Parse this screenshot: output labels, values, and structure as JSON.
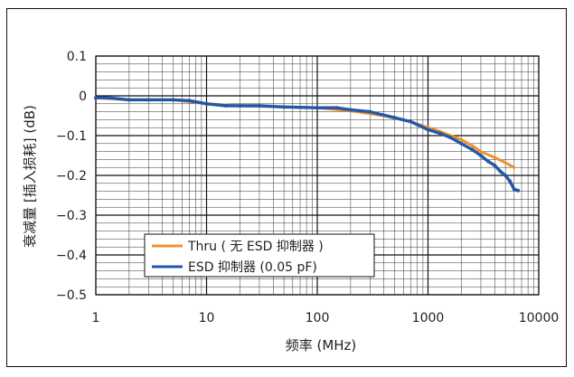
{
  "chart_data": {
    "type": "line",
    "title": "",
    "xlabel": "频率 (MHz)",
    "ylabel": "衰减量 [插入损耗] (dB)",
    "xscale": "log",
    "xlim": [
      1,
      10000
    ],
    "ylim": [
      -0.5,
      0.1
    ],
    "x_ticks": [
      1,
      10,
      100,
      1000,
      10000
    ],
    "x_tick_labels": [
      "1",
      "10",
      "100",
      "1000",
      "10000"
    ],
    "y_ticks": [
      0.1,
      0,
      -0.1,
      -0.2,
      -0.3,
      -0.4,
      -0.5
    ],
    "y_tick_labels": [
      "0.1",
      "0",
      "−0.1",
      "−0.2",
      "−0.3",
      "−0.4",
      "−0.5"
    ],
    "grid": true,
    "legend_position": "bottom-left",
    "series": [
      {
        "name": "Thru ( 无 ESD 抑制器 )",
        "color": "#f0922b",
        "x": [
          1,
          2,
          5,
          10,
          20,
          50,
          100,
          200,
          400,
          700,
          1000,
          1300,
          1600,
          2000,
          2500,
          3000,
          4000,
          5000,
          6000
        ],
        "y": [
          -0.005,
          -0.01,
          -0.01,
          -0.02,
          -0.025,
          -0.028,
          -0.03,
          -0.038,
          -0.05,
          -0.065,
          -0.08,
          -0.09,
          -0.1,
          -0.11,
          -0.125,
          -0.14,
          -0.155,
          -0.168,
          -0.18
        ]
      },
      {
        "name": "ESD 抑制器 (0.05 pF)",
        "color": "#2457a7",
        "x": [
          1,
          1.3,
          2,
          3,
          5,
          7,
          10,
          15,
          20,
          30,
          50,
          100,
          150,
          200,
          300,
          500,
          700,
          1000,
          1300,
          1600,
          2000,
          2500,
          3000,
          3500,
          4000,
          4500,
          5000,
          5500,
          6000,
          6500
        ],
        "y": [
          -0.005,
          -0.005,
          -0.01,
          -0.01,
          -0.01,
          -0.012,
          -0.02,
          -0.025,
          -0.025,
          -0.025,
          -0.028,
          -0.03,
          -0.03,
          -0.035,
          -0.04,
          -0.055,
          -0.065,
          -0.085,
          -0.095,
          -0.105,
          -0.12,
          -0.135,
          -0.15,
          -0.165,
          -0.175,
          -0.19,
          -0.2,
          -0.215,
          -0.235,
          -0.238
        ]
      }
    ]
  }
}
